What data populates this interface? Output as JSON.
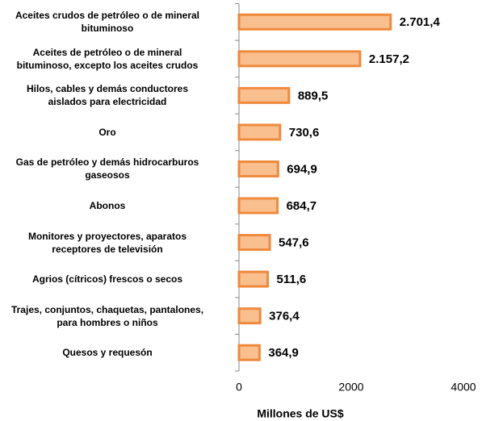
{
  "chart_data": {
    "type": "barh",
    "categories": [
      "Aceites crudos de petróleo o de mineral\nbituminoso",
      "Aceites de petróleo o de mineral\nbituminoso, excepto los aceites crudos",
      "Hilos, cables y demás conductores\naislados para electricidad",
      "Oro",
      "Gas de petróleo y demás hidrocarburos\ngaseosos",
      "Abonos",
      "Monitores y proyectores, aparatos\nreceptores de televisión",
      "Agrios (cítricos) frescos o secos",
      "Trajes, conjuntos, chaquetas, pantalones,\npara hombres o niños",
      "Quesos y requesón"
    ],
    "values": [
      2701.4,
      2157.2,
      889.5,
      730.6,
      694.9,
      684.7,
      547.6,
      511.6,
      376.4,
      364.9
    ],
    "value_labels": [
      "2.701,4",
      "2.157,2",
      "889,5",
      "730,6",
      "694,9",
      "684,7",
      "547,6",
      "511,6",
      "376,4",
      "364,9"
    ],
    "color": "#f9bf8f",
    "edge_color": "#ef8a3c",
    "xlabel": "Millones de US$",
    "xlim": [
      0,
      4000
    ],
    "xticks": [
      0,
      2000,
      4000
    ]
  }
}
